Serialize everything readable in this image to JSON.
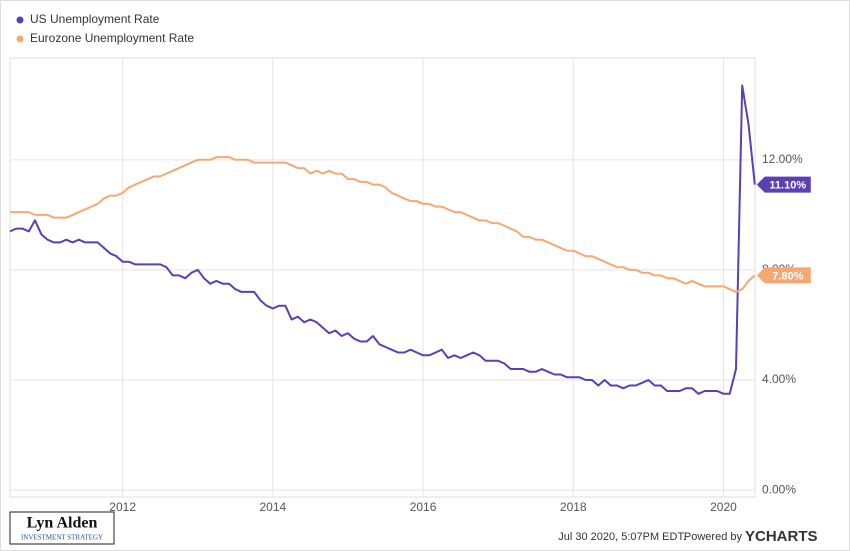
{
  "chart_data": {
    "type": "line",
    "x": [
      2010.5,
      2010.583,
      2010.667,
      2010.75,
      2010.833,
      2010.917,
      2011,
      2011.083,
      2011.167,
      2011.25,
      2011.333,
      2011.417,
      2011.5,
      2011.583,
      2011.667,
      2011.75,
      2011.833,
      2011.917,
      2012,
      2012.083,
      2012.167,
      2012.25,
      2012.333,
      2012.417,
      2012.5,
      2012.583,
      2012.667,
      2012.75,
      2012.833,
      2012.917,
      2013,
      2013.083,
      2013.167,
      2013.25,
      2013.333,
      2013.417,
      2013.5,
      2013.583,
      2013.667,
      2013.75,
      2013.833,
      2013.917,
      2014,
      2014.083,
      2014.167,
      2014.25,
      2014.333,
      2014.417,
      2014.5,
      2014.583,
      2014.667,
      2014.75,
      2014.833,
      2014.917,
      2015,
      2015.083,
      2015.167,
      2015.25,
      2015.333,
      2015.417,
      2015.5,
      2015.583,
      2015.667,
      2015.75,
      2015.833,
      2015.917,
      2016,
      2016.083,
      2016.167,
      2016.25,
      2016.333,
      2016.417,
      2016.5,
      2016.583,
      2016.667,
      2016.75,
      2016.833,
      2016.917,
      2017,
      2017.083,
      2017.167,
      2017.25,
      2017.333,
      2017.417,
      2017.5,
      2017.583,
      2017.667,
      2017.75,
      2017.833,
      2017.917,
      2018,
      2018.083,
      2018.167,
      2018.25,
      2018.333,
      2018.417,
      2018.5,
      2018.583,
      2018.667,
      2018.75,
      2018.833,
      2018.917,
      2019,
      2019.083,
      2019.167,
      2019.25,
      2019.333,
      2019.417,
      2019.5,
      2019.583,
      2019.667,
      2019.75,
      2019.833,
      2019.917,
      2020,
      2020.083,
      2020.167,
      2020.25,
      2020.333,
      2020.417
    ],
    "series": [
      {
        "name": "US Unemployment Rate",
        "color": "#5b3fb5",
        "values": [
          9.4,
          9.5,
          9.5,
          9.4,
          9.8,
          9.3,
          9.1,
          9.0,
          9.0,
          9.1,
          9.0,
          9.1,
          9.0,
          9.0,
          9.0,
          8.8,
          8.6,
          8.5,
          8.3,
          8.3,
          8.2,
          8.2,
          8.2,
          8.2,
          8.2,
          8.1,
          7.8,
          7.8,
          7.7,
          7.9,
          8.0,
          7.7,
          7.5,
          7.6,
          7.5,
          7.5,
          7.3,
          7.2,
          7.2,
          7.2,
          6.9,
          6.7,
          6.6,
          6.7,
          6.7,
          6.2,
          6.3,
          6.1,
          6.2,
          6.1,
          5.9,
          5.7,
          5.8,
          5.6,
          5.7,
          5.5,
          5.4,
          5.4,
          5.6,
          5.3,
          5.2,
          5.1,
          5.0,
          5.0,
          5.1,
          5.0,
          4.9,
          4.9,
          5.0,
          5.1,
          4.8,
          4.9,
          4.8,
          4.9,
          5.0,
          4.9,
          4.7,
          4.7,
          4.7,
          4.6,
          4.4,
          4.4,
          4.4,
          4.3,
          4.3,
          4.4,
          4.3,
          4.2,
          4.2,
          4.1,
          4.1,
          4.1,
          4.0,
          4.0,
          3.8,
          4.0,
          3.8,
          3.8,
          3.7,
          3.8,
          3.8,
          3.9,
          4.0,
          3.8,
          3.8,
          3.6,
          3.6,
          3.6,
          3.7,
          3.7,
          3.5,
          3.6,
          3.6,
          3.6,
          3.5,
          3.5,
          4.4,
          14.7,
          13.3,
          11.1
        ],
        "value_labels": [
          null,
          null,
          null,
          null,
          null,
          null,
          null,
          null,
          null,
          null,
          null,
          null,
          null,
          null,
          null,
          null,
          null,
          null,
          null,
          null,
          null,
          null,
          null,
          null,
          null,
          null,
          null,
          null,
          null,
          null,
          null,
          null,
          null,
          null,
          null,
          null,
          null,
          null,
          null,
          null,
          null,
          null,
          null,
          null,
          null,
          null,
          null,
          null,
          null,
          null,
          null,
          null,
          null,
          null,
          null,
          null,
          null,
          null,
          null,
          null,
          null,
          null,
          null,
          null,
          null,
          null,
          null,
          null,
          null,
          null,
          null,
          null,
          null,
          null,
          null,
          null,
          null,
          null,
          null,
          null,
          null,
          null,
          null,
          null,
          null,
          null,
          null,
          null,
          null,
          null,
          null,
          null,
          null,
          null,
          null,
          null,
          null,
          null,
          null,
          null,
          null,
          null,
          null,
          null,
          null,
          null,
          null,
          null,
          null,
          null,
          null,
          null,
          null,
          null,
          null,
          null,
          null,
          null,
          null,
          "11.10%"
        ]
      },
      {
        "name": "Eurozone Unemployment Rate",
        "color": "#f7a872",
        "values": [
          10.1,
          10.1,
          10.1,
          10.1,
          10.0,
          10.0,
          10.0,
          9.9,
          9.9,
          9.9,
          10.0,
          10.1,
          10.2,
          10.3,
          10.4,
          10.6,
          10.7,
          10.7,
          10.8,
          11.0,
          11.1,
          11.2,
          11.3,
          11.4,
          11.4,
          11.5,
          11.6,
          11.7,
          11.8,
          11.9,
          12.0,
          12.0,
          12.0,
          12.1,
          12.1,
          12.1,
          12.0,
          12.0,
          12.0,
          11.9,
          11.9,
          11.9,
          11.9,
          11.9,
          11.9,
          11.8,
          11.7,
          11.7,
          11.5,
          11.6,
          11.5,
          11.6,
          11.5,
          11.5,
          11.3,
          11.3,
          11.2,
          11.2,
          11.1,
          11.1,
          11.0,
          10.8,
          10.7,
          10.6,
          10.5,
          10.5,
          10.4,
          10.4,
          10.3,
          10.3,
          10.2,
          10.1,
          10.1,
          10.0,
          9.9,
          9.8,
          9.8,
          9.7,
          9.7,
          9.6,
          9.5,
          9.4,
          9.2,
          9.2,
          9.1,
          9.1,
          9.0,
          8.9,
          8.8,
          8.7,
          8.7,
          8.6,
          8.5,
          8.5,
          8.4,
          8.3,
          8.2,
          8.1,
          8.1,
          8.0,
          8.0,
          7.9,
          7.9,
          7.8,
          7.8,
          7.7,
          7.7,
          7.6,
          7.5,
          7.6,
          7.5,
          7.4,
          7.4,
          7.4,
          7.4,
          7.3,
          7.2,
          7.3,
          7.6,
          7.8
        ],
        "value_labels": [
          null,
          null,
          null,
          null,
          null,
          null,
          null,
          null,
          null,
          null,
          null,
          null,
          null,
          null,
          null,
          null,
          null,
          null,
          null,
          null,
          null,
          null,
          null,
          null,
          null,
          null,
          null,
          null,
          null,
          null,
          null,
          null,
          null,
          null,
          null,
          null,
          null,
          null,
          null,
          null,
          null,
          null,
          null,
          null,
          null,
          null,
          null,
          null,
          null,
          null,
          null,
          null,
          null,
          null,
          null,
          null,
          null,
          null,
          null,
          null,
          null,
          null,
          null,
          null,
          null,
          null,
          null,
          null,
          null,
          null,
          null,
          null,
          null,
          null,
          null,
          null,
          null,
          null,
          null,
          null,
          null,
          null,
          null,
          null,
          null,
          null,
          null,
          null,
          null,
          null,
          null,
          null,
          null,
          null,
          null,
          null,
          null,
          null,
          null,
          null,
          null,
          null,
          null,
          null,
          null,
          null,
          null,
          null,
          null,
          null,
          null,
          null,
          null,
          null,
          null,
          null,
          null,
          null,
          null,
          "7.80%"
        ]
      }
    ],
    "xlim": [
      2010.5,
      2020.42
    ],
    "xticks": [
      2012,
      2014,
      2016,
      2018,
      2020
    ],
    "ylim": [
      -0.25,
      15.7
    ],
    "yticks": [
      {
        "value": 0,
        "label": "0.00%"
      },
      {
        "value": 4,
        "label": "4.00%"
      },
      {
        "value": 8,
        "label": "8.00%"
      },
      {
        "value": 12,
        "label": "12.00%"
      }
    ],
    "grid": true,
    "legend": "top-left",
    "brand": "Lyn Alden",
    "brand_tagline": "INVESTMENT STRATEGY",
    "timestamp": "Jul 30 2020, 5:07PM EDT.",
    "powered_by": "Powered by",
    "provider": "YCHARTS"
  }
}
